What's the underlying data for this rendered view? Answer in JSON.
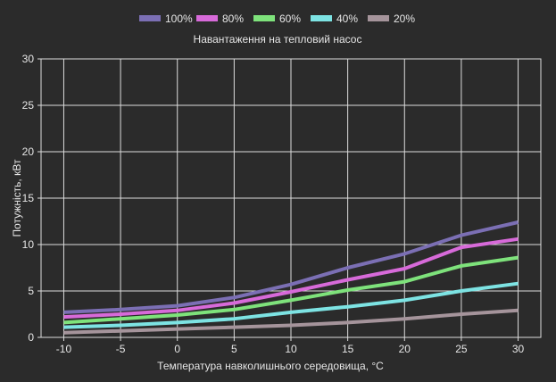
{
  "chart_data": {
    "type": "line",
    "legend_title": "Навантаження на тепловий насос",
    "legend_placement": "top-center",
    "xlabel": "Температура навколишнього середовища, °С",
    "ylabel": "Потужність, кВт",
    "xlim": [
      -12,
      32
    ],
    "ylim": [
      0,
      30
    ],
    "xticks": [
      -10,
      -5,
      0,
      5,
      10,
      15,
      20,
      25,
      30
    ],
    "yticks": [
      0,
      5,
      10,
      15,
      20,
      25,
      30
    ],
    "grid": true,
    "x": [
      -10,
      -5,
      0,
      5,
      10,
      15,
      20,
      25,
      30
    ],
    "series": [
      {
        "name": "100%",
        "color": "#7b6fb4",
        "values": [
          2.7,
          3.0,
          3.4,
          4.3,
          5.7,
          7.5,
          9.0,
          11.0,
          12.4
        ]
      },
      {
        "name": "80%",
        "color": "#d76ad9",
        "values": [
          2.2,
          2.5,
          2.9,
          3.7,
          4.9,
          6.2,
          7.4,
          9.7,
          10.6
        ]
      },
      {
        "name": "60%",
        "color": "#7ee27b",
        "values": [
          1.6,
          2.0,
          2.4,
          3.0,
          4.0,
          5.1,
          6.0,
          7.7,
          8.6
        ]
      },
      {
        "name": "40%",
        "color": "#7de3e3",
        "values": [
          1.1,
          1.3,
          1.6,
          2.0,
          2.7,
          3.3,
          4.0,
          5.0,
          5.8
        ]
      },
      {
        "name": "20%",
        "color": "#a5949b",
        "values": [
          0.5,
          0.7,
          0.9,
          1.1,
          1.3,
          1.6,
          2.0,
          2.5,
          2.9
        ]
      }
    ]
  }
}
